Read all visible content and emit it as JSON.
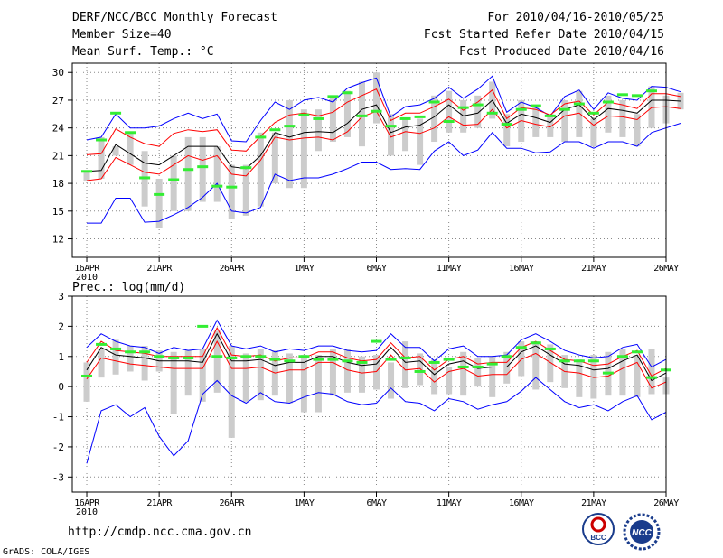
{
  "header": {
    "title": "DERF/NCC/BCC Monthly Forecast",
    "member_size": "Member Size=40",
    "variable_1": "Mean Surf. Temp.: °C",
    "forecast_period": "For 2010/04/16-2010/05/25",
    "refer_date": "Fcst Started Refer Date 2010/04/15",
    "produced_date": "Fcst Produced Date 2010/04/16"
  },
  "footer": {
    "url": "http://cmdp.ncc.cma.gov.cn",
    "credit": "GrADS: COLA/IGES",
    "logo_left_text": "BCC",
    "logo_right_text": "NCC"
  },
  "colors": {
    "envelope": "#0000ff",
    "inner_band": "#ff0000",
    "ensemble_mean": "#000000",
    "box": "#cccccc",
    "observation": "#33ee33",
    "grid": "#888888"
  },
  "chart_data": [
    {
      "type": "line",
      "title": "Mean Surf. Temp.: °C",
      "ylim": [
        10,
        31
      ],
      "yticks": [
        12,
        15,
        18,
        21,
        24,
        27,
        30
      ],
      "xlim": [
        -1,
        40
      ],
      "xticks": [
        {
          "day": 0,
          "label": "16APR",
          "sub": "2010"
        },
        {
          "day": 5,
          "label": "21APR"
        },
        {
          "day": 10,
          "label": "26APR"
        },
        {
          "day": 15,
          "label": "1MAY"
        },
        {
          "day": 20,
          "label": "6MAY"
        },
        {
          "day": 25,
          "label": "11MAY"
        },
        {
          "day": 30,
          "label": "16MAY"
        },
        {
          "day": 35,
          "label": "21MAY"
        },
        {
          "day": 40,
          "label": "26MAY"
        }
      ],
      "series": [
        {
          "name": "max",
          "color": "#0000ff",
          "values": [
            22.7,
            23.0,
            25.5,
            24.0,
            24.0,
            24.2,
            25.0,
            25.6,
            25.0,
            25.5,
            22.6,
            22.5,
            24.8,
            26.8,
            26.0,
            27.0,
            27.3,
            26.8,
            28.3,
            28.9,
            29.4,
            25.2,
            26.3,
            26.5,
            27.2,
            28.4,
            27.2,
            28.2,
            29.6,
            25.7,
            26.8,
            26.2,
            25.3,
            27.4,
            28.1,
            26.0,
            27.8,
            27.2,
            27.0,
            28.5,
            28.4,
            27.9
          ]
        },
        {
          "name": "upper",
          "color": "#ff0000",
          "values": [
            21.1,
            21.2,
            23.9,
            23.0,
            22.3,
            22.0,
            23.4,
            23.8,
            23.6,
            23.8,
            21.6,
            21.5,
            23.1,
            24.6,
            25.4,
            25.6,
            25.3,
            25.7,
            26.8,
            27.5,
            28.2,
            24.8,
            25.6,
            25.6,
            26.3,
            27.1,
            25.9,
            26.8,
            28.1,
            25.0,
            26.2,
            26.0,
            25.4,
            26.6,
            26.9,
            25.4,
            26.8,
            26.5,
            26.1,
            27.7,
            27.7,
            27.4
          ]
        },
        {
          "name": "mean",
          "color": "#000000",
          "values": [
            19.3,
            19.4,
            22.2,
            21.2,
            20.2,
            20.0,
            21.0,
            22.0,
            22.0,
            22.0,
            19.8,
            19.6,
            21.0,
            23.5,
            23.0,
            23.5,
            23.6,
            23.5,
            24.5,
            26.0,
            26.5,
            23.5,
            24.1,
            24.3,
            25.2,
            26.5,
            25.3,
            25.6,
            27.0,
            24.5,
            25.5,
            25.1,
            24.6,
            26.0,
            26.5,
            24.9,
            26.1,
            25.9,
            25.6,
            27.0,
            27.0,
            26.9
          ]
        },
        {
          "name": "lower",
          "color": "#ff0000",
          "values": [
            18.3,
            18.5,
            20.8,
            20.0,
            19.2,
            19.0,
            20.0,
            21.0,
            20.5,
            21.0,
            19.0,
            18.8,
            20.5,
            23.0,
            22.7,
            22.9,
            23.0,
            22.7,
            23.6,
            25.2,
            25.8,
            23.0,
            23.6,
            23.4,
            24.0,
            25.2,
            24.3,
            24.4,
            26.0,
            24.0,
            24.8,
            24.4,
            24.1,
            25.3,
            25.6,
            24.3,
            25.3,
            25.2,
            24.9,
            26.2,
            26.3,
            26.1
          ]
        },
        {
          "name": "min",
          "color": "#0000ff",
          "values": [
            13.7,
            13.7,
            16.4,
            16.4,
            13.8,
            13.9,
            14.6,
            15.4,
            16.5,
            18.0,
            15.0,
            14.8,
            15.4,
            19.0,
            18.3,
            18.6,
            18.6,
            19.0,
            19.6,
            20.3,
            20.3,
            19.5,
            19.6,
            19.5,
            21.5,
            22.5,
            21.0,
            21.6,
            23.5,
            21.8,
            21.8,
            21.3,
            21.4,
            22.5,
            22.5,
            21.8,
            22.5,
            22.5,
            22.0,
            23.5,
            24.0,
            24.5
          ]
        }
      ],
      "boxes": [
        [
          18.2,
          19.3
        ],
        [
          18.5,
          23.0
        ],
        [
          21.0,
          22.0
        ],
        [
          20.0,
          23.5
        ],
        [
          15.5,
          21.5
        ],
        [
          13.2,
          18.5
        ],
        [
          15.0,
          21.0
        ],
        [
          15.0,
          23.0
        ],
        [
          16.0,
          23.0
        ],
        [
          16.0,
          22.0
        ],
        [
          14.2,
          20.0
        ],
        [
          14.5,
          20.0
        ],
        [
          15.5,
          23.5
        ],
        [
          18.0,
          23.5
        ],
        [
          17.5,
          27.0
        ],
        [
          17.5,
          26.0
        ],
        [
          21.5,
          26.0
        ],
        [
          22.5,
          27.3
        ],
        [
          23.0,
          28.0
        ],
        [
          22.0,
          29.0
        ],
        [
          24.5,
          30.0
        ],
        [
          21.0,
          25.5
        ],
        [
          21.5,
          25.0
        ],
        [
          20.0,
          25.0
        ],
        [
          22.5,
          27.5
        ],
        [
          23.5,
          28.0
        ],
        [
          23.5,
          27.0
        ],
        [
          24.0,
          27.5
        ],
        [
          25.0,
          29.0
        ],
        [
          22.0,
          25.5
        ],
        [
          22.5,
          27.0
        ],
        [
          23.0,
          26.5
        ],
        [
          23.0,
          25.5
        ],
        [
          22.5,
          27.0
        ],
        [
          23.0,
          28.0
        ],
        [
          22.0,
          25.0
        ],
        [
          23.5,
          27.5
        ],
        [
          23.0,
          27.0
        ],
        [
          22.0,
          25.5
        ],
        [
          24.0,
          28.5
        ],
        [
          24.5,
          27.5
        ],
        [
          26.0,
          27.8
        ]
      ],
      "observations": [
        19.3,
        22.7,
        25.6,
        23.5,
        18.6,
        16.8,
        18.4,
        19.5,
        19.8,
        17.7,
        17.6,
        19.7,
        23.0,
        23.8,
        24.2,
        25.4,
        25.0,
        27.4,
        27.8,
        25.3,
        25.8,
        24.2,
        25.0,
        25.2,
        26.8,
        24.7,
        26.2,
        26.5,
        25.6,
        24.4,
        26.0,
        26.4,
        25.3,
        26.0,
        26.6,
        25.6,
        26.8,
        27.6,
        27.5,
        28.0
      ]
    },
    {
      "type": "line",
      "title": "Prec.: log(mm/d)",
      "ylim": [
        -3.5,
        3
      ],
      "yticks": [
        -3,
        -2,
        -1,
        0,
        1,
        2,
        3
      ],
      "xlim": [
        -1,
        40
      ],
      "xticks": [
        {
          "day": 0,
          "label": "16APR",
          "sub": "2010"
        },
        {
          "day": 5,
          "label": "21APR"
        },
        {
          "day": 10,
          "label": "26APR"
        },
        {
          "day": 15,
          "label": "1MAY"
        },
        {
          "day": 20,
          "label": "6MAY"
        },
        {
          "day": 25,
          "label": "11MAY"
        },
        {
          "day": 30,
          "label": "16MAY"
        },
        {
          "day": 35,
          "label": "21MAY"
        },
        {
          "day": 40,
          "label": "26MAY"
        }
      ],
      "series": [
        {
          "name": "max",
          "color": "#0000ff",
          "values": [
            1.3,
            1.75,
            1.5,
            1.35,
            1.3,
            1.1,
            1.3,
            1.2,
            1.25,
            2.2,
            1.35,
            1.25,
            1.35,
            1.15,
            1.25,
            1.2,
            1.35,
            1.35,
            1.2,
            1.15,
            1.2,
            1.75,
            1.3,
            1.3,
            0.85,
            1.25,
            1.35,
            1.0,
            1.0,
            1.05,
            1.55,
            1.75,
            1.5,
            1.2,
            1.05,
            0.95,
            1.0,
            1.3,
            1.4,
            0.65,
            0.9
          ]
        },
        {
          "name": "upper",
          "color": "#ff0000",
          "values": [
            0.8,
            1.5,
            1.2,
            1.15,
            1.1,
            1.0,
            1.0,
            1.0,
            1.0,
            1.95,
            1.05,
            1.0,
            1.05,
            0.85,
            0.95,
            0.95,
            1.15,
            1.15,
            0.95,
            0.85,
            0.9,
            1.45,
            0.95,
            1.0,
            0.55,
            0.9,
            1.0,
            0.75,
            0.8,
            0.8,
            1.3,
            1.5,
            1.2,
            0.9,
            0.85,
            0.7,
            0.75,
            1.0,
            1.2,
            0.35,
            0.6
          ]
        },
        {
          "name": "mean",
          "color": "#000000",
          "values": [
            0.55,
            1.3,
            1.05,
            1.0,
            0.95,
            0.85,
            0.85,
            0.85,
            0.8,
            1.75,
            0.85,
            0.85,
            0.9,
            0.7,
            0.8,
            0.8,
            1.0,
            1.0,
            0.8,
            0.7,
            0.75,
            1.3,
            0.8,
            0.85,
            0.4,
            0.75,
            0.85,
            0.6,
            0.65,
            0.65,
            1.15,
            1.35,
            1.05,
            0.75,
            0.7,
            0.55,
            0.6,
            0.85,
            1.05,
            0.2,
            0.45
          ]
        },
        {
          "name": "lower",
          "color": "#ff0000",
          "values": [
            0.25,
            0.95,
            0.85,
            0.75,
            0.7,
            0.65,
            0.6,
            0.6,
            0.6,
            1.5,
            0.6,
            0.6,
            0.65,
            0.45,
            0.55,
            0.55,
            0.8,
            0.8,
            0.55,
            0.45,
            0.5,
            1.05,
            0.55,
            0.6,
            0.15,
            0.5,
            0.6,
            0.35,
            0.4,
            0.4,
            0.9,
            1.1,
            0.8,
            0.5,
            0.45,
            0.3,
            0.35,
            0.6,
            0.8,
            -0.05,
            0.15
          ]
        },
        {
          "name": "min",
          "color": "#0000ff",
          "values": [
            -2.55,
            -0.8,
            -0.6,
            -1.0,
            -0.7,
            -1.65,
            -2.3,
            -1.8,
            -0.25,
            0.2,
            -0.3,
            -0.55,
            -0.2,
            -0.5,
            -0.55,
            -0.35,
            -0.2,
            -0.25,
            -0.5,
            -0.6,
            -0.55,
            -0.05,
            -0.5,
            -0.55,
            -0.8,
            -0.4,
            -0.5,
            -0.75,
            -0.6,
            -0.5,
            -0.15,
            0.3,
            -0.1,
            -0.5,
            -0.7,
            -0.6,
            -0.8,
            -0.5,
            -0.3,
            -1.1,
            -0.85
          ]
        }
      ],
      "boxes": [
        [
          -0.5,
          0.8
        ],
        [
          0.3,
          1.25
        ],
        [
          0.4,
          1.55
        ],
        [
          0.5,
          1.35
        ],
        [
          0.2,
          1.35
        ],
        [
          0.5,
          1.2
        ],
        [
          -0.9,
          1.15
        ],
        [
          -0.3,
          1.2
        ],
        [
          -0.5,
          1.25
        ],
        [
          -0.2,
          1.85
        ],
        [
          -1.7,
          1.35
        ],
        [
          -0.5,
          1.1
        ],
        [
          -0.45,
          1.25
        ],
        [
          -0.3,
          1.2
        ],
        [
          -0.55,
          1.1
        ],
        [
          -0.85,
          1.05
        ],
        [
          -0.85,
          1.05
        ],
        [
          -0.3,
          1.25
        ],
        [
          -0.2,
          1.25
        ],
        [
          -0.2,
          1.0
        ],
        [
          -0.1,
          1.05
        ],
        [
          -0.4,
          0.8
        ],
        [
          -0.05,
          1.5
        ],
        [
          0.05,
          1.1
        ],
        [
          -0.25,
          0.9
        ],
        [
          -0.25,
          0.65
        ],
        [
          -0.3,
          1.15
        ],
        [
          0.0,
          0.95
        ],
        [
          -0.35,
          1.0
        ],
        [
          0.1,
          1.15
        ],
        [
          0.35,
          1.5
        ],
        [
          -0.1,
          1.5
        ],
        [
          0.15,
          1.4
        ],
        [
          -0.05,
          1.05
        ],
        [
          -0.35,
          0.9
        ],
        [
          -0.4,
          1.05
        ],
        [
          -0.3,
          1.15
        ],
        [
          -0.3,
          1.25
        ],
        [
          -0.35,
          1.05
        ],
        [
          -0.25,
          1.25
        ],
        [
          -0.25,
          0.3
        ]
      ],
      "observations": [
        0.35,
        1.4,
        1.25,
        1.15,
        1.15,
        1.0,
        0.95,
        0.95,
        2.0,
        1.0,
        0.95,
        1.0,
        1.0,
        0.9,
        0.85,
        1.0,
        0.9,
        0.9,
        0.85,
        0.8,
        1.5,
        0.9,
        0.95,
        0.5,
        0.8,
        0.9,
        0.65,
        0.65,
        0.75,
        1.0,
        1.3,
        1.45,
        1.25,
        0.85,
        0.85,
        0.85,
        0.45,
        1.0,
        1.15,
        0.3,
        0.55
      ],
      "observation_offset": 0
    }
  ]
}
